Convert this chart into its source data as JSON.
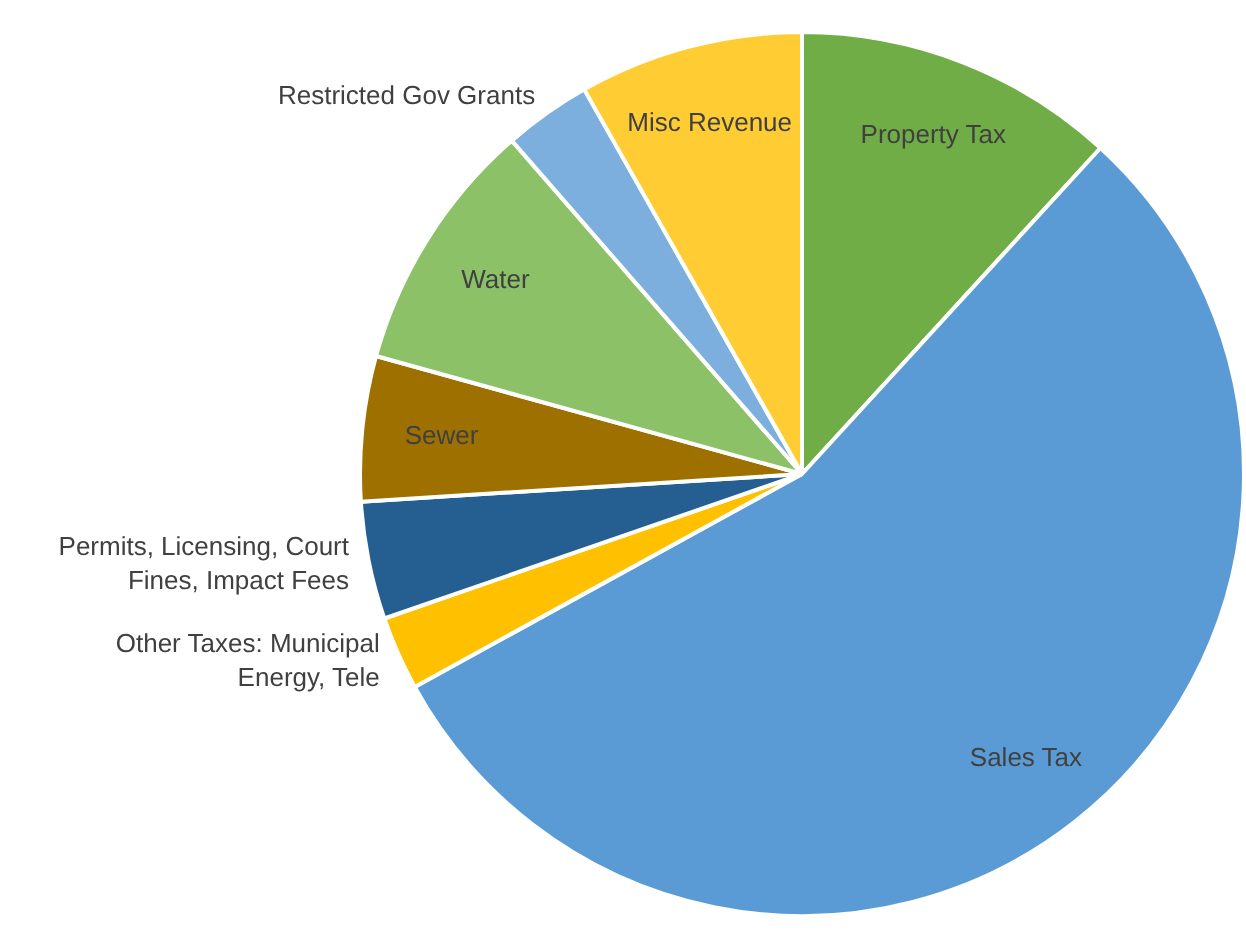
{
  "chart_data": {
    "type": "pie",
    "categories": [
      "Property Tax",
      "Sales Tax",
      "Other Taxes: Municipal Energy, Tele",
      "Permits, Licensing, Court Fines, Impact Fees",
      "Sewer",
      "Water",
      "Restricted Gov Grants",
      "Misc Revenue"
    ],
    "values": [
      11.8,
      55.2,
      2.7,
      4.3,
      5.3,
      9.3,
      3.2,
      8.2
    ],
    "colors": [
      "#70ad47",
      "#5b9bd5",
      "#ffc000",
      "#255e91",
      "#9e7000",
      "#8cc168",
      "#7cafdd",
      "#ffcd33"
    ],
    "legend": false
  }
}
